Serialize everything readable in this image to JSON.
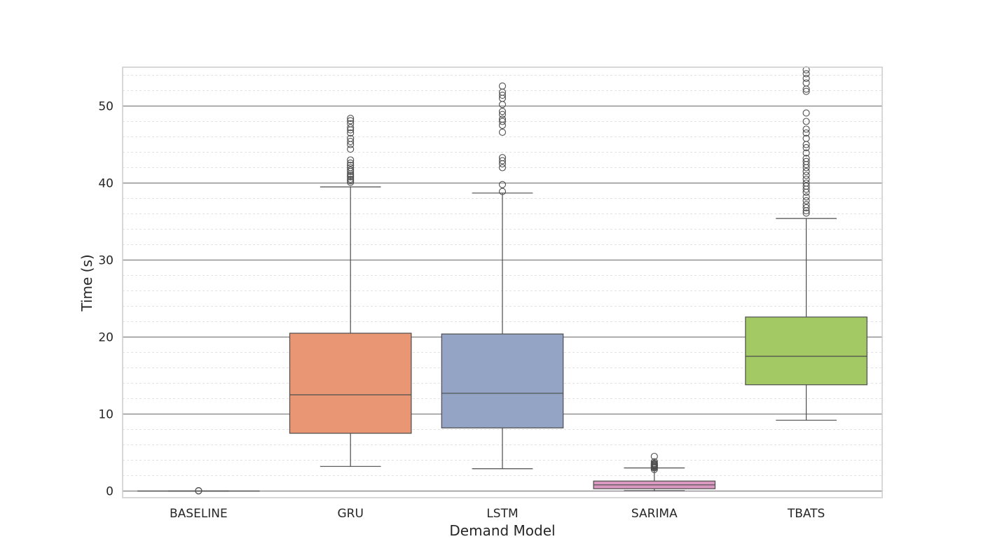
{
  "chart_data": {
    "type": "box",
    "xlabel": "Demand Model",
    "ylabel": "Time (s)",
    "ylim": [
      -1,
      55
    ],
    "yticks": [
      0,
      10,
      20,
      30,
      40,
      50
    ],
    "grid": {
      "major": true,
      "minor": true,
      "minor_step": 2
    },
    "categories": [
      "BASELINE",
      "GRU",
      "LSTM",
      "SARIMA",
      "TBATS"
    ],
    "series": [
      {
        "category": "BASELINE",
        "color": "#66c2a5",
        "whisker_low": 0.0,
        "q1": 0.0,
        "median": 0.0,
        "q3": 0.0,
        "whisker_high": 0.0,
        "outliers": [
          0.02,
          0.05
        ]
      },
      {
        "category": "GRU",
        "color": "#e99675",
        "whisker_low": 3.2,
        "q1": 7.5,
        "median": 12.5,
        "q3": 20.5,
        "whisker_high": 39.5,
        "outliers": [
          40.1,
          40.3,
          40.5,
          40.8,
          41.0,
          41.2,
          41.5,
          41.7,
          42.0,
          42.3,
          42.6,
          43.0,
          44.4,
          45.0,
          45.4,
          45.8,
          46.5,
          46.9,
          47.2,
          47.7,
          48.1,
          48.4
        ]
      },
      {
        "category": "LSTM",
        "color": "#93a4c4",
        "whisker_low": 2.9,
        "q1": 8.2,
        "median": 12.7,
        "q3": 20.4,
        "whisker_high": 38.7,
        "outliers": [
          38.9,
          39.8,
          42.0,
          42.5,
          42.9,
          43.3,
          46.6,
          47.5,
          48.0,
          48.3,
          48.9,
          49.3,
          50.2,
          51.0,
          51.4,
          51.8,
          52.6
        ]
      },
      {
        "category": "SARIMA",
        "color": "#d898c0",
        "whisker_low": 0.05,
        "q1": 0.3,
        "median": 0.8,
        "q3": 1.3,
        "whisker_high": 3.0,
        "outliers": [
          2.8,
          3.0,
          3.1,
          3.2,
          3.3,
          3.4,
          3.5,
          3.6,
          3.8,
          4.5
        ]
      },
      {
        "category": "TBATS",
        "color": "#a2c963",
        "whisker_low": 9.2,
        "q1": 13.8,
        "median": 17.5,
        "q3": 22.6,
        "whisker_high": 35.4,
        "outliers": [
          36.1,
          36.4,
          36.8,
          37.2,
          37.7,
          38.2,
          38.8,
          39.2,
          39.6,
          40.0,
          40.5,
          41.0,
          41.5,
          42.0,
          42.4,
          42.8,
          43.2,
          43.9,
          44.6,
          45.0,
          45.8,
          46.5,
          47.0,
          48.0,
          49.1,
          51.9,
          52.2,
          53.0,
          53.6,
          54.2,
          54.7
        ]
      }
    ]
  }
}
